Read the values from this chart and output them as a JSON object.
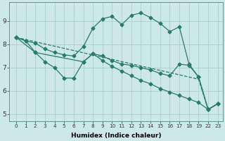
{
  "xlabel": "Humidex (Indice chaleur)",
  "bg_color": "#cce8e8",
  "line_color": "#2a7a6e",
  "grid_color": "#aacfcf",
  "xlim": [
    -0.5,
    23.5
  ],
  "ylim": [
    4.7,
    9.8
  ],
  "xticks": [
    0,
    1,
    2,
    3,
    4,
    5,
    6,
    7,
    8,
    9,
    10,
    11,
    12,
    13,
    14,
    15,
    16,
    17,
    18,
    19,
    22,
    23
  ],
  "yticks": [
    5,
    6,
    7,
    8,
    9
  ],
  "line1_x": [
    0,
    1,
    2,
    3,
    4,
    5,
    6,
    7,
    8,
    9,
    10,
    11,
    12,
    13,
    14,
    15,
    16,
    17,
    18,
    19,
    22,
    23
  ],
  "line1_y": [
    8.3,
    8.15,
    8.05,
    7.8,
    7.65,
    7.55,
    7.5,
    7.9,
    8.7,
    9.1,
    9.2,
    8.85,
    9.25,
    9.35,
    9.15,
    8.9,
    8.55,
    8.75,
    7.15,
    6.6,
    5.2,
    5.45
  ],
  "line2_x": [
    0,
    1,
    2,
    7,
    8,
    9,
    10,
    11,
    12,
    13,
    14,
    15,
    16,
    17,
    18,
    19,
    22,
    23
  ],
  "line2_y": [
    8.3,
    8.15,
    7.65,
    7.25,
    7.6,
    7.5,
    7.3,
    7.15,
    7.1,
    7.0,
    6.9,
    6.75,
    6.65,
    7.15,
    7.1,
    6.6,
    5.2,
    5.45
  ],
  "line3_x": [
    0,
    2,
    3,
    4,
    5,
    6,
    7,
    8,
    9,
    10,
    11,
    12,
    13,
    14,
    15,
    16,
    17,
    18,
    19,
    22,
    23
  ],
  "line3_y": [
    8.3,
    7.65,
    7.25,
    7.0,
    6.55,
    6.55,
    7.25,
    7.6,
    7.3,
    7.05,
    6.85,
    6.65,
    6.45,
    6.3,
    6.1,
    5.95,
    5.8,
    5.65,
    5.5,
    5.2,
    5.45
  ],
  "line4_x": [
    0,
    19,
    22,
    23
  ],
  "line4_y": [
    8.3,
    6.5,
    5.2,
    5.45
  ]
}
